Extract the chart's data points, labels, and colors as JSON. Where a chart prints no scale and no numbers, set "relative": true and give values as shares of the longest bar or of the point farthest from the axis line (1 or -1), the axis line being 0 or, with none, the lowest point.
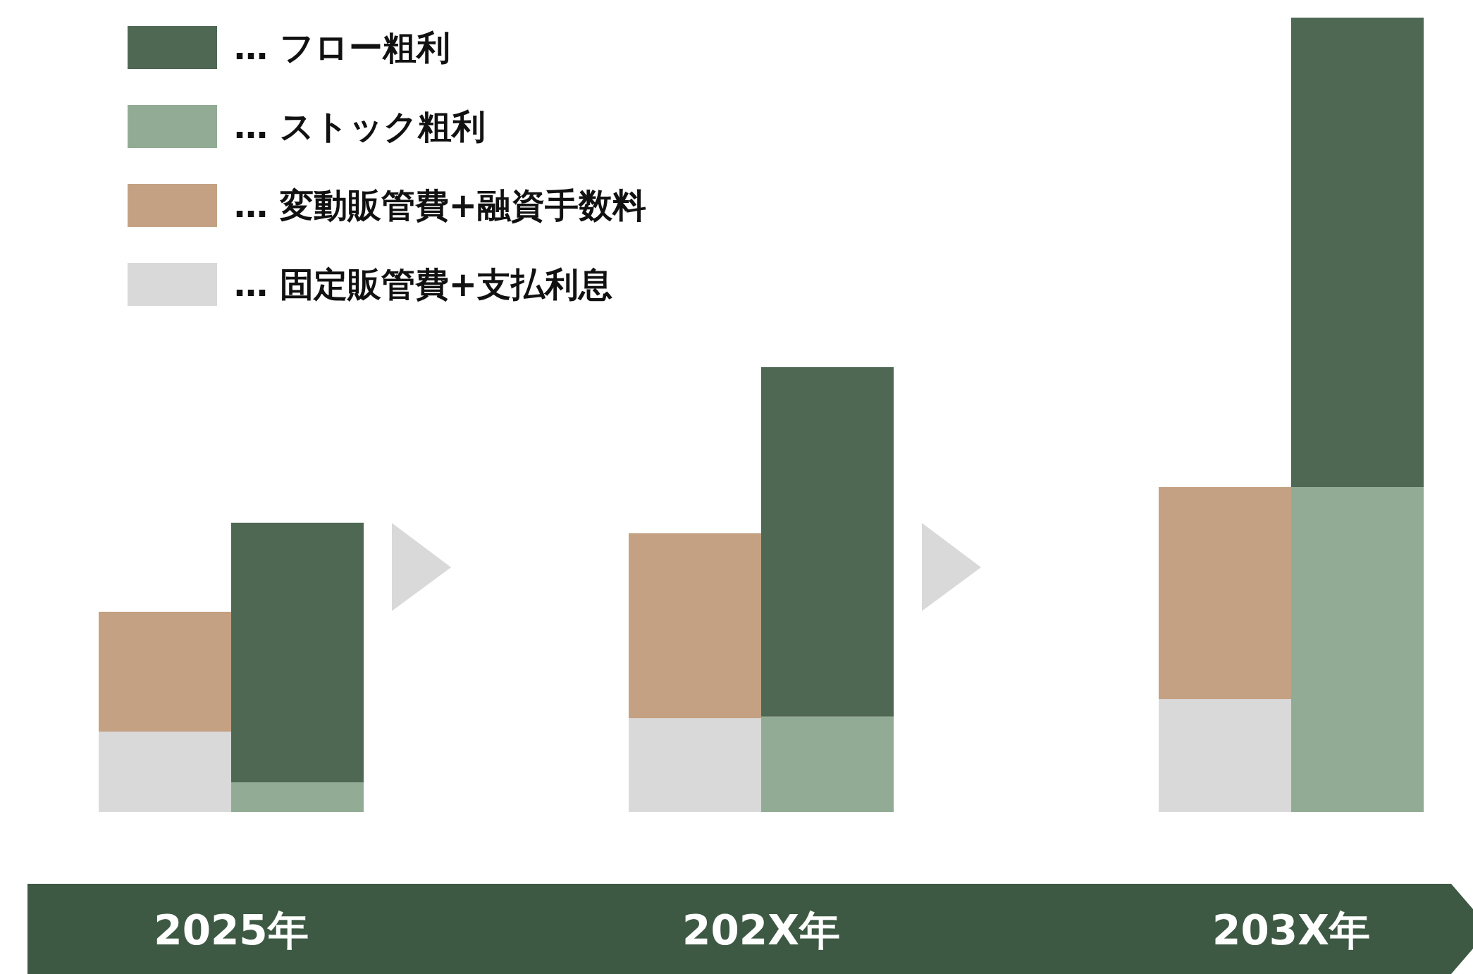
{
  "chart_data": {
    "type": "bar",
    "stacked": true,
    "relative": true,
    "legend": "top left",
    "categories": [
      "2025年",
      null,
      null,
      null,
      "202X年",
      null,
      null,
      null,
      "203X年",
      null
    ],
    "series": [
      {
        "name": "… 固定販管費+支払利息",
        "color": "#d9d9d9",
        "values": [
          0.101,
          null,
          null,
          null,
          0.118,
          null,
          null,
          null,
          0.142,
          null
        ]
      },
      {
        "name": "… 変動販管費+融資手数料",
        "color": "#c3a182",
        "values": [
          0.151,
          null,
          null,
          null,
          0.233,
          null,
          null,
          null,
          0.267,
          null
        ]
      },
      {
        "name": "… ストック粗利",
        "color": "#92ab94",
        "values": [
          null,
          0.037,
          null,
          null,
          null,
          0.12,
          null,
          null,
          null,
          0.409
        ]
      },
      {
        "name": "… フロー粗利",
        "color": "#4f6854",
        "values": [
          null,
          0.327,
          null,
          null,
          null,
          0.44,
          null,
          null,
          null,
          0.591
        ]
      }
    ]
  }
}
